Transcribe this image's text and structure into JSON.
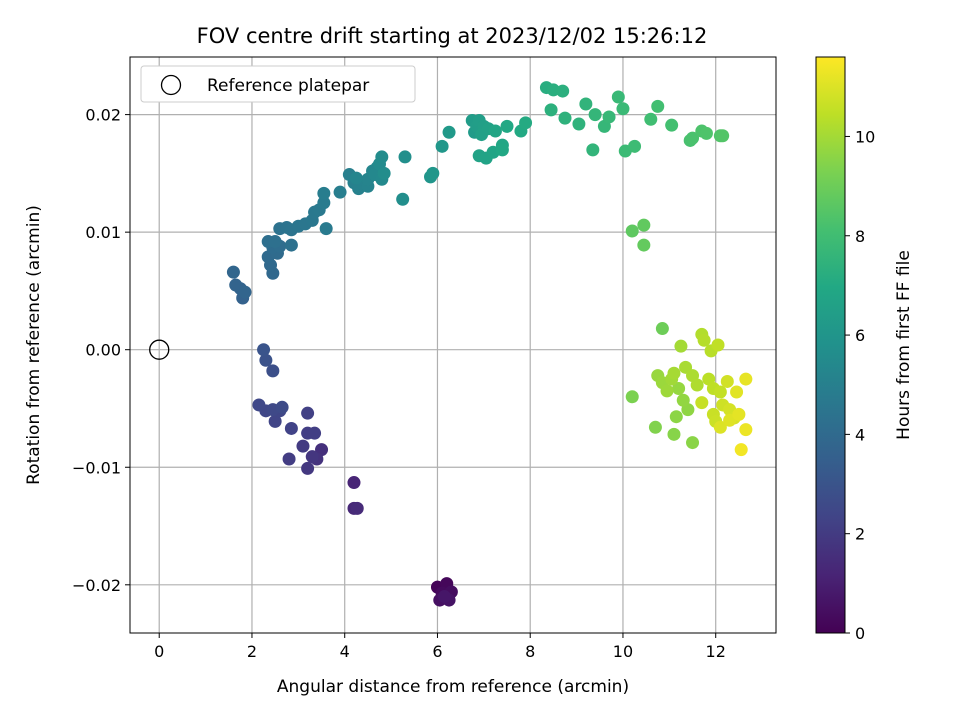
{
  "chart_data": {
    "type": "scatter",
    "title": "FOV centre drift starting at 2023/12/02 15:26:12",
    "xlabel": "Angular distance from reference (arcmin)",
    "ylabel": "Rotation from reference (arcmin)",
    "xlim": [
      -0.63,
      13.3
    ],
    "ylim": [
      -0.0241,
      0.0249
    ],
    "xticks": [
      0,
      2,
      4,
      6,
      8,
      10,
      12
    ],
    "yticks": [
      0.02,
      0.01,
      0.0,
      -0.01,
      -0.02
    ],
    "xtick_labels": [
      "0",
      "2",
      "4",
      "6",
      "8",
      "10",
      "12"
    ],
    "ytick_labels": [
      "0.02",
      "0.01",
      "0.00",
      "−0.01",
      "−0.02"
    ],
    "grid": true,
    "legend": {
      "position": "top-left",
      "entries": [
        "Reference platepar"
      ]
    },
    "reference_point": {
      "x": 0,
      "y": 0
    },
    "colormap": "viridis",
    "colorbar": {
      "label": "Hours from first FF file",
      "range": [
        0,
        11.6
      ],
      "ticks": [
        0,
        2,
        4,
        6,
        8,
        10
      ],
      "tick_labels": [
        "0",
        "2",
        "4",
        "6",
        "8",
        "10"
      ]
    },
    "points": [
      {
        "x": 6.0,
        "y": -0.0202,
        "c": 0.1
      },
      {
        "x": 6.2,
        "y": -0.0199,
        "c": 0.2
      },
      {
        "x": 6.1,
        "y": -0.0207,
        "c": 0.3
      },
      {
        "x": 6.3,
        "y": -0.0206,
        "c": 0.4
      },
      {
        "x": 6.05,
        "y": -0.0213,
        "c": 0.5
      },
      {
        "x": 6.25,
        "y": -0.0213,
        "c": 0.6
      },
      {
        "x": 6.15,
        "y": -0.021,
        "c": 0.7
      },
      {
        "x": 4.2,
        "y": -0.0113,
        "c": 1.2
      },
      {
        "x": 4.2,
        "y": -0.0135,
        "c": 1.3
      },
      {
        "x": 4.27,
        "y": -0.0135,
        "c": 1.4
      },
      {
        "x": 3.5,
        "y": -0.0085,
        "c": 1.6
      },
      {
        "x": 3.4,
        "y": -0.0093,
        "c": 1.7
      },
      {
        "x": 3.3,
        "y": -0.0091,
        "c": 1.8
      },
      {
        "x": 3.2,
        "y": -0.0101,
        "c": 1.9
      },
      {
        "x": 3.1,
        "y": -0.0082,
        "c": 2.0
      },
      {
        "x": 2.8,
        "y": -0.0093,
        "c": 2.05
      },
      {
        "x": 3.2,
        "y": -0.0071,
        "c": 2.1
      },
      {
        "x": 3.35,
        "y": -0.0071,
        "c": 2.15
      },
      {
        "x": 3.2,
        "y": -0.0054,
        "c": 2.2
      },
      {
        "x": 2.85,
        "y": -0.0067,
        "c": 2.3
      },
      {
        "x": 2.5,
        "y": -0.0061,
        "c": 2.35
      },
      {
        "x": 2.6,
        "y": -0.0052,
        "c": 2.4
      },
      {
        "x": 2.3,
        "y": -0.0052,
        "c": 2.45
      },
      {
        "x": 2.15,
        "y": -0.0047,
        "c": 2.5
      },
      {
        "x": 2.45,
        "y": -0.0051,
        "c": 2.55
      },
      {
        "x": 2.65,
        "y": -0.0049,
        "c": 2.6
      },
      {
        "x": 2.45,
        "y": -0.0018,
        "c": 2.8
      },
      {
        "x": 2.3,
        "y": -0.0009,
        "c": 2.9
      },
      {
        "x": 2.25,
        "y": 0.0,
        "c": 3.0
      },
      {
        "x": 1.8,
        "y": 0.0044,
        "c": 3.6
      },
      {
        "x": 1.75,
        "y": 0.0052,
        "c": 3.65
      },
      {
        "x": 1.65,
        "y": 0.0055,
        "c": 3.7
      },
      {
        "x": 1.85,
        "y": 0.0049,
        "c": 3.75
      },
      {
        "x": 1.6,
        "y": 0.0066,
        "c": 3.8
      },
      {
        "x": 2.45,
        "y": 0.0065,
        "c": 3.9
      },
      {
        "x": 2.4,
        "y": 0.0072,
        "c": 3.95
      },
      {
        "x": 2.35,
        "y": 0.0079,
        "c": 4.0
      },
      {
        "x": 2.55,
        "y": 0.0082,
        "c": 4.05
      },
      {
        "x": 2.45,
        "y": 0.0087,
        "c": 4.1
      },
      {
        "x": 2.6,
        "y": 0.0088,
        "c": 4.15
      },
      {
        "x": 2.35,
        "y": 0.0092,
        "c": 4.2
      },
      {
        "x": 2.5,
        "y": 0.0092,
        "c": 4.25
      },
      {
        "x": 2.85,
        "y": 0.0089,
        "c": 4.3
      },
      {
        "x": 2.6,
        "y": 0.0103,
        "c": 4.35
      },
      {
        "x": 2.75,
        "y": 0.0104,
        "c": 4.4
      },
      {
        "x": 2.85,
        "y": 0.0102,
        "c": 4.45
      },
      {
        "x": 3.0,
        "y": 0.0105,
        "c": 4.5
      },
      {
        "x": 3.15,
        "y": 0.0107,
        "c": 4.55
      },
      {
        "x": 3.3,
        "y": 0.011,
        "c": 4.6
      },
      {
        "x": 3.35,
        "y": 0.0117,
        "c": 4.65
      },
      {
        "x": 3.45,
        "y": 0.0119,
        "c": 4.7
      },
      {
        "x": 3.6,
        "y": 0.0103,
        "c": 4.75
      },
      {
        "x": 3.55,
        "y": 0.0125,
        "c": 4.8
      },
      {
        "x": 3.55,
        "y": 0.0133,
        "c": 4.85
      },
      {
        "x": 3.9,
        "y": 0.0134,
        "c": 4.9
      },
      {
        "x": 4.1,
        "y": 0.0149,
        "c": 4.95
      },
      {
        "x": 4.2,
        "y": 0.0142,
        "c": 5.0
      },
      {
        "x": 4.3,
        "y": 0.0137,
        "c": 5.05
      },
      {
        "x": 4.4,
        "y": 0.0141,
        "c": 5.1
      },
      {
        "x": 4.5,
        "y": 0.0139,
        "c": 5.15
      },
      {
        "x": 4.5,
        "y": 0.0145,
        "c": 5.2
      },
      {
        "x": 4.25,
        "y": 0.0146,
        "c": 5.25
      },
      {
        "x": 4.6,
        "y": 0.0152,
        "c": 5.3
      },
      {
        "x": 4.7,
        "y": 0.0155,
        "c": 5.35
      },
      {
        "x": 4.65,
        "y": 0.0149,
        "c": 5.4
      },
      {
        "x": 4.8,
        "y": 0.0145,
        "c": 5.45
      },
      {
        "x": 4.75,
        "y": 0.0158,
        "c": 5.5
      },
      {
        "x": 4.8,
        "y": 0.0164,
        "c": 5.55
      },
      {
        "x": 4.85,
        "y": 0.015,
        "c": 5.6
      },
      {
        "x": 5.25,
        "y": 0.0128,
        "c": 5.65
      },
      {
        "x": 5.3,
        "y": 0.0164,
        "c": 5.7
      },
      {
        "x": 5.85,
        "y": 0.0147,
        "c": 6.0
      },
      {
        "x": 5.9,
        "y": 0.015,
        "c": 6.05
      },
      {
        "x": 6.1,
        "y": 0.0173,
        "c": 6.1
      },
      {
        "x": 6.25,
        "y": 0.0185,
        "c": 6.2
      },
      {
        "x": 6.8,
        "y": 0.0185,
        "c": 6.3
      },
      {
        "x": 6.75,
        "y": 0.0195,
        "c": 6.35
      },
      {
        "x": 6.85,
        "y": 0.019,
        "c": 6.4
      },
      {
        "x": 6.9,
        "y": 0.0195,
        "c": 6.45
      },
      {
        "x": 7.0,
        "y": 0.019,
        "c": 6.5
      },
      {
        "x": 6.95,
        "y": 0.0183,
        "c": 6.55
      },
      {
        "x": 7.1,
        "y": 0.0188,
        "c": 6.6
      },
      {
        "x": 6.9,
        "y": 0.0165,
        "c": 6.65
      },
      {
        "x": 7.05,
        "y": 0.0163,
        "c": 6.7
      },
      {
        "x": 7.2,
        "y": 0.0168,
        "c": 6.75
      },
      {
        "x": 7.25,
        "y": 0.0186,
        "c": 6.8
      },
      {
        "x": 7.4,
        "y": 0.0174,
        "c": 6.85
      },
      {
        "x": 7.4,
        "y": 0.017,
        "c": 6.9
      },
      {
        "x": 7.5,
        "y": 0.019,
        "c": 6.95
      },
      {
        "x": 7.8,
        "y": 0.0186,
        "c": 7.0
      },
      {
        "x": 7.9,
        "y": 0.0193,
        "c": 7.05
      },
      {
        "x": 8.35,
        "y": 0.0223,
        "c": 7.2
      },
      {
        "x": 8.5,
        "y": 0.0221,
        "c": 7.25
      },
      {
        "x": 8.7,
        "y": 0.022,
        "c": 7.3
      },
      {
        "x": 8.45,
        "y": 0.0204,
        "c": 7.35
      },
      {
        "x": 8.75,
        "y": 0.0197,
        "c": 7.4
      },
      {
        "x": 9.05,
        "y": 0.0192,
        "c": 7.45
      },
      {
        "x": 9.2,
        "y": 0.0209,
        "c": 7.5
      },
      {
        "x": 9.35,
        "y": 0.017,
        "c": 7.55
      },
      {
        "x": 9.4,
        "y": 0.02,
        "c": 7.6
      },
      {
        "x": 9.6,
        "y": 0.019,
        "c": 7.65
      },
      {
        "x": 9.7,
        "y": 0.0198,
        "c": 7.7
      },
      {
        "x": 9.9,
        "y": 0.0215,
        "c": 7.75
      },
      {
        "x": 10.0,
        "y": 0.0205,
        "c": 7.8
      },
      {
        "x": 10.05,
        "y": 0.0169,
        "c": 7.85
      },
      {
        "x": 10.25,
        "y": 0.0173,
        "c": 7.9
      },
      {
        "x": 10.6,
        "y": 0.0196,
        "c": 8.0
      },
      {
        "x": 10.75,
        "y": 0.0207,
        "c": 8.05
      },
      {
        "x": 11.05,
        "y": 0.0191,
        "c": 8.1
      },
      {
        "x": 11.45,
        "y": 0.0178,
        "c": 8.2
      },
      {
        "x": 11.5,
        "y": 0.018,
        "c": 8.25
      },
      {
        "x": 11.7,
        "y": 0.0186,
        "c": 8.3
      },
      {
        "x": 11.8,
        "y": 0.0184,
        "c": 8.35
      },
      {
        "x": 12.1,
        "y": 0.0182,
        "c": 8.4
      },
      {
        "x": 12.15,
        "y": 0.0182,
        "c": 8.45
      },
      {
        "x": 10.2,
        "y": 0.0101,
        "c": 8.7
      },
      {
        "x": 10.45,
        "y": 0.0106,
        "c": 8.75
      },
      {
        "x": 10.45,
        "y": 0.0089,
        "c": 8.8
      },
      {
        "x": 10.85,
        "y": 0.0018,
        "c": 9.0
      },
      {
        "x": 10.2,
        "y": -0.004,
        "c": 9.3
      },
      {
        "x": 10.7,
        "y": -0.0066,
        "c": 9.4
      },
      {
        "x": 11.1,
        "y": -0.0072,
        "c": 9.5
      },
      {
        "x": 11.5,
        "y": -0.0079,
        "c": 9.55
      },
      {
        "x": 11.15,
        "y": -0.0057,
        "c": 9.6
      },
      {
        "x": 11.4,
        "y": -0.0051,
        "c": 9.65
      },
      {
        "x": 11.3,
        "y": -0.0043,
        "c": 9.7
      },
      {
        "x": 11.2,
        "y": -0.0033,
        "c": 9.75
      },
      {
        "x": 10.75,
        "y": -0.0022,
        "c": 9.8
      },
      {
        "x": 10.85,
        "y": -0.0028,
        "c": 9.85
      },
      {
        "x": 10.95,
        "y": -0.0035,
        "c": 9.9
      },
      {
        "x": 11.05,
        "y": -0.0025,
        "c": 9.95
      },
      {
        "x": 11.25,
        "y": 0.0003,
        "c": 10.0
      },
      {
        "x": 11.1,
        "y": -0.002,
        "c": 10.05
      },
      {
        "x": 11.35,
        "y": -0.0015,
        "c": 10.1
      },
      {
        "x": 11.5,
        "y": -0.0022,
        "c": 10.15
      },
      {
        "x": 11.6,
        "y": -0.003,
        "c": 10.2
      },
      {
        "x": 11.7,
        "y": 0.0013,
        "c": 10.25
      },
      {
        "x": 11.75,
        "y": 0.0008,
        "c": 10.3
      },
      {
        "x": 11.9,
        "y": -0.0001,
        "c": 10.35
      },
      {
        "x": 11.85,
        "y": -0.0025,
        "c": 10.4
      },
      {
        "x": 11.95,
        "y": -0.0033,
        "c": 10.45
      },
      {
        "x": 12.05,
        "y": 0.0004,
        "c": 10.5
      },
      {
        "x": 12.1,
        "y": -0.0036,
        "c": 10.55
      },
      {
        "x": 11.7,
        "y": -0.0045,
        "c": 10.6
      },
      {
        "x": 11.95,
        "y": -0.0055,
        "c": 10.65
      },
      {
        "x": 12.0,
        "y": -0.0061,
        "c": 10.7
      },
      {
        "x": 12.15,
        "y": -0.0047,
        "c": 10.75
      },
      {
        "x": 12.25,
        "y": -0.0027,
        "c": 10.8
      },
      {
        "x": 12.3,
        "y": -0.0051,
        "c": 10.85
      },
      {
        "x": 12.4,
        "y": -0.0058,
        "c": 10.9
      },
      {
        "x": 12.1,
        "y": -0.0066,
        "c": 11.0
      },
      {
        "x": 12.3,
        "y": -0.006,
        "c": 11.05
      },
      {
        "x": 12.45,
        "y": -0.0036,
        "c": 11.1
      },
      {
        "x": 12.5,
        "y": -0.0055,
        "c": 11.15
      },
      {
        "x": 12.65,
        "y": -0.0025,
        "c": 11.2
      },
      {
        "x": 12.65,
        "y": -0.0068,
        "c": 11.3
      },
      {
        "x": 12.55,
        "y": -0.0085,
        "c": 11.4
      }
    ]
  }
}
